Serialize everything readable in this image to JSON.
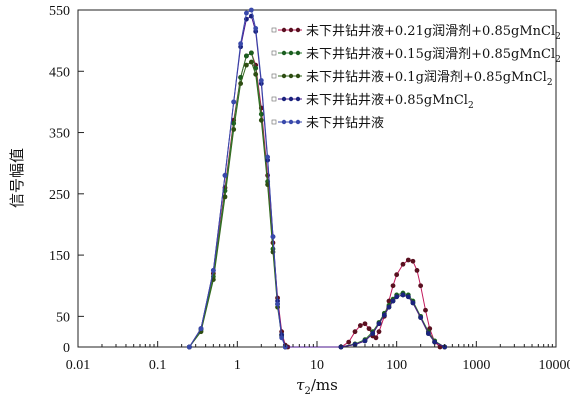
{
  "chart_data": {
    "type": "line",
    "xlabel_symbol": "τ",
    "xlabel_sub": "2",
    "xlabel_unit": "/ms",
    "ylabel": "信号幅值",
    "x_scale": "log",
    "xlim": [
      0.01,
      10000
    ],
    "ylim": [
      0,
      550
    ],
    "x_ticks": [
      "0.01",
      "0.1",
      "1",
      "10",
      "100",
      "1000",
      "10000"
    ],
    "y_ticks": [
      "0",
      "50",
      "150",
      "250",
      "350",
      "450",
      "550"
    ],
    "grid": false,
    "legend_position": "top-right",
    "series": [
      {
        "name": "未下井钻井液+0.21g润滑剂+0.85gMnCl",
        "name_sub": "2",
        "line_color": "#c2185b",
        "marker_color": "#5a1020",
        "x": [
          0.25,
          0.35,
          0.5,
          0.7,
          0.9,
          1.1,
          1.3,
          1.5,
          1.7,
          2.0,
          2.4,
          2.8,
          3.2,
          3.6,
          4.0,
          4.3,
          20,
          25,
          30,
          35,
          40,
          45,
          50,
          55,
          60,
          70,
          80,
          90,
          100,
          120,
          140,
          160,
          180,
          200,
          230,
          260,
          300,
          350
        ],
        "y": [
          0,
          30,
          120,
          260,
          370,
          440,
          475,
          480,
          460,
          390,
          280,
          170,
          80,
          25,
          3,
          0,
          0,
          8,
          25,
          35,
          38,
          30,
          18,
          15,
          25,
          50,
          75,
          100,
          118,
          135,
          142,
          140,
          125,
          100,
          60,
          30,
          8,
          0
        ]
      },
      {
        "name": "未下井钻井液+0.15g润滑剂+0.85gMnCl",
        "name_sub": "2",
        "line_color": "#2e7d32",
        "marker_color": "#1b5e20",
        "x": [
          0.25,
          0.35,
          0.5,
          0.7,
          0.9,
          1.1,
          1.3,
          1.5,
          1.7,
          2.0,
          2.4,
          2.8,
          3.2,
          3.6,
          4.0,
          20,
          30,
          40,
          50,
          60,
          70,
          80,
          90,
          100,
          120,
          140,
          160,
          200,
          250,
          300,
          400
        ],
        "y": [
          0,
          28,
          115,
          255,
          365,
          440,
          475,
          480,
          455,
          380,
          270,
          160,
          70,
          20,
          0,
          0,
          5,
          12,
          25,
          40,
          55,
          68,
          78,
          85,
          88,
          85,
          75,
          50,
          25,
          10,
          0
        ]
      },
      {
        "name": "未下井钻井液+0.1g润滑剂+0.85gMnCl",
        "name_sub": "2",
        "line_color": "#33691e",
        "marker_color": "#2e4d12",
        "x": [
          0.25,
          0.35,
          0.5,
          0.7,
          0.9,
          1.1,
          1.3,
          1.5,
          1.7,
          2.0,
          2.4,
          2.8,
          3.2,
          3.6,
          4.0,
          20,
          30,
          40,
          50,
          60,
          70,
          80,
          90,
          100,
          120,
          140,
          160,
          200,
          250,
          300,
          400
        ],
        "y": [
          0,
          25,
          110,
          245,
          355,
          430,
          460,
          465,
          445,
          370,
          265,
          155,
          65,
          18,
          0,
          0,
          4,
          10,
          22,
          38,
          52,
          65,
          75,
          82,
          85,
          82,
          72,
          48,
          22,
          8,
          0
        ]
      },
      {
        "name": "未下井钻井液+0.85gMnCl",
        "name_sub": "2",
        "line_color": "#4a148c",
        "marker_color": "#1a237e",
        "x": [
          0.25,
          0.35,
          0.5,
          0.7,
          0.9,
          1.1,
          1.3,
          1.5,
          1.7,
          2.0,
          2.4,
          2.8,
          3.2,
          3.6,
          4.0,
          20,
          30,
          40,
          50,
          60,
          70,
          80,
          90,
          100,
          120,
          140,
          160,
          200,
          250,
          300,
          400
        ],
        "y": [
          0,
          30,
          125,
          280,
          400,
          490,
          535,
          540,
          515,
          430,
          305,
          180,
          75,
          20,
          0,
          0,
          4,
          10,
          22,
          38,
          52,
          65,
          75,
          82,
          85,
          82,
          72,
          48,
          22,
          8,
          0
        ]
      },
      {
        "name": "未下井钻井液",
        "name_sub": "",
        "line_color": "#3949ab",
        "marker_color": "#3949ab",
        "x": [
          0.25,
          0.35,
          0.5,
          0.7,
          0.9,
          1.1,
          1.3,
          1.5,
          1.7,
          2.0,
          2.4,
          2.8,
          3.2,
          3.6,
          4.0
        ],
        "y": [
          0,
          30,
          125,
          280,
          400,
          495,
          545,
          550,
          520,
          435,
          310,
          180,
          70,
          15,
          0
        ]
      }
    ]
  }
}
